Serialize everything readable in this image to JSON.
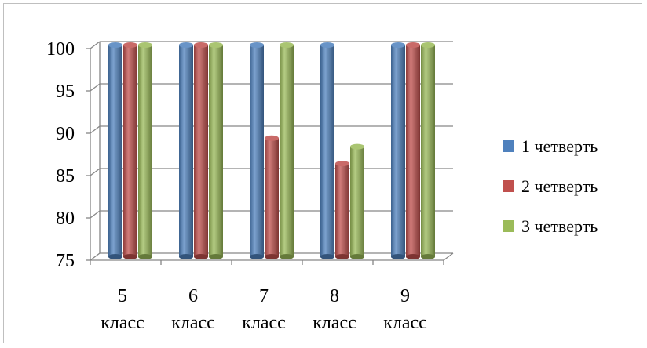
{
  "chart_data": {
    "type": "bar",
    "title": "",
    "xlabel": "",
    "ylabel": "",
    "ylim": [
      75,
      100
    ],
    "yticks": [
      "75",
      "80",
      "85",
      "90",
      "95",
      "100"
    ],
    "categories": [
      {
        "num": "5",
        "word": "класс"
      },
      {
        "num": "6",
        "word": "класс"
      },
      {
        "num": "7",
        "word": "класс"
      },
      {
        "num": "8",
        "word": "класс"
      },
      {
        "num": "9",
        "word": "класс"
      }
    ],
    "series": [
      {
        "name": "1 четверть",
        "color": "#4f81bd",
        "values": [
          100,
          100,
          100,
          100,
          100
        ]
      },
      {
        "name": "2 четверть",
        "color": "#c0504d",
        "values": [
          100,
          100,
          89,
          86,
          100
        ]
      },
      {
        "name": "3 четверть",
        "color": "#9bbb59",
        "values": [
          100,
          100,
          100,
          88,
          100
        ]
      }
    ],
    "grid": true,
    "style": "3d-cylinder",
    "legend_position": "right"
  }
}
